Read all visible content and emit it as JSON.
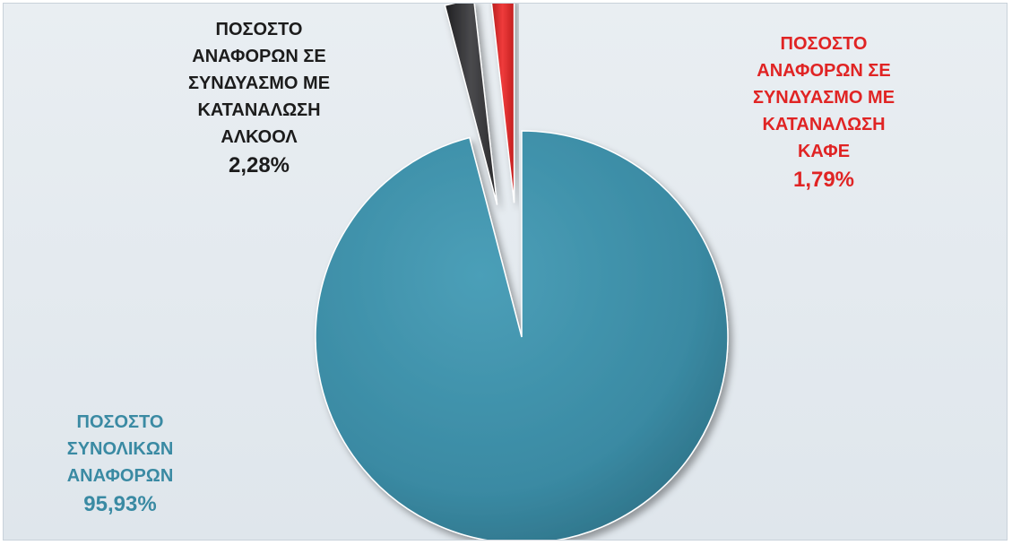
{
  "chart_data": {
    "type": "pie",
    "exploded": true,
    "slices": [
      {
        "key": "total",
        "label_lines": [
          "ΠΟΣΟΣΤΟ",
          "ΣΥΝΟΛΙΚΩΝ",
          "ΑΝΑΦΟΡΩΝ"
        ],
        "value_text": "95,93%",
        "value": 95.93,
        "color": "#3a8aa3",
        "label_color": "#3a8aa3"
      },
      {
        "key": "alcohol",
        "label_lines": [
          "ΠΟΣΟΣΤΟ",
          "ΑΝΑΦΟΡΩΝ ΣΕ",
          "ΣΥΝΔΥΑΣΜΟ ΜΕ",
          "ΚΑΤΑΝΑΛΩΣΗ",
          "ΑΛΚΟΟΛ"
        ],
        "value_text": "2,28%",
        "value": 2.28,
        "color": "#3a3a3c",
        "label_color": "#1c1c1c"
      },
      {
        "key": "coffee",
        "label_lines": [
          "ΠΟΣΟΣΤΟ",
          "ΑΝΑΦΟΡΩΝ ΣΕ",
          "ΣΥΝΔΥΑΣΜΟ ΜΕ",
          "ΚΑΤΑΝΑΛΩΣΗ",
          "ΚΑΦΕ"
        ],
        "value_text": "1,79%",
        "value": 1.79,
        "color": "#d92626",
        "label_color": "#e02424"
      }
    ]
  }
}
